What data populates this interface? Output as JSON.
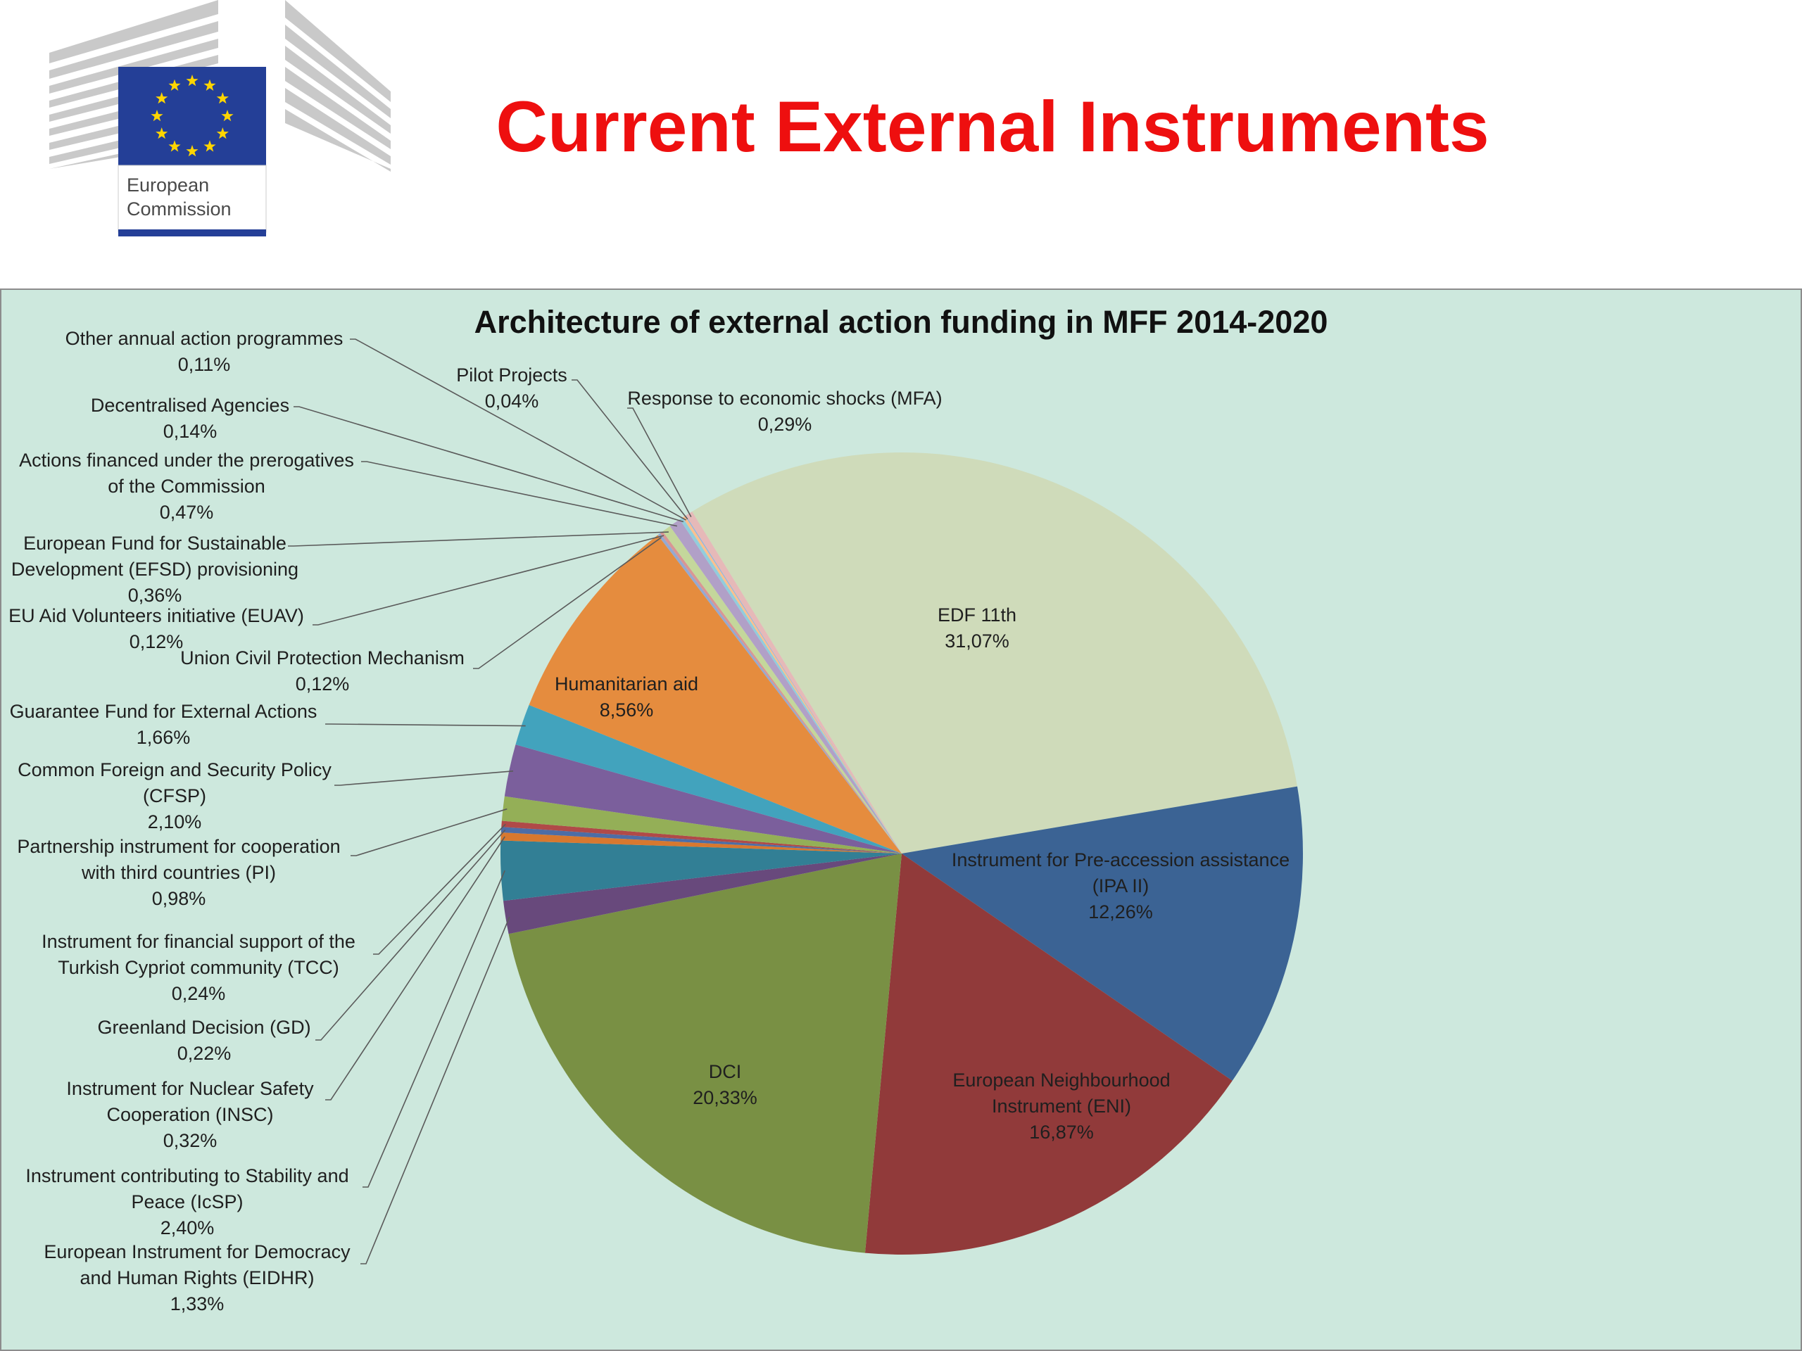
{
  "header": {
    "title": "Current External Instruments",
    "logo_text_line1": "European",
    "logo_text_line2": "Commission"
  },
  "colors": {
    "title_red": "#ee0f0f",
    "panel_bg": "#cde8dd",
    "eu_blue": "#243f97",
    "eu_gold": "#ffd500"
  },
  "chart_data": {
    "type": "pie",
    "title": "Architecture of external action funding in MFF 2014-2020",
    "slices": [
      {
        "label": "EDF 11th",
        "value": 31.07,
        "pct": "31,07%",
        "color": "#cfdbba"
      },
      {
        "label": "Instrument for Pre-accession assistance (IPA II)",
        "value": 12.26,
        "pct": "12,26%",
        "color": "#3b6394"
      },
      {
        "label": "European Neighbourhood Instrument (ENI)",
        "value": 16.87,
        "pct": "16,87%",
        "color": "#913a3a"
      },
      {
        "label": "DCI",
        "value": 20.33,
        "pct": "20,33%",
        "color": "#799044"
      },
      {
        "label": "European Instrument for Democracy and Human Rights (EIDHR)",
        "value": 1.33,
        "pct": "1,33%",
        "color": "#68497c"
      },
      {
        "label": "Instrument contributing to Stability and Peace (IcSP)",
        "value": 2.4,
        "pct": "2,40%",
        "color": "#327f95"
      },
      {
        "label": "Instrument for Nuclear Safety Cooperation (INSC)",
        "value": 0.32,
        "pct": "0,32%",
        "color": "#d8782f"
      },
      {
        "label": "Greenland Decision (GD)",
        "value": 0.22,
        "pct": "0,22%",
        "color": "#4d6da6"
      },
      {
        "label": "Instrument for financial support of the Turkish Cypriot community (TCC)",
        "value": 0.24,
        "pct": "0,24%",
        "color": "#b04a48"
      },
      {
        "label": "Partnership instrument for cooperation with third countries (PI)",
        "value": 0.98,
        "pct": "0,98%",
        "color": "#94af57"
      },
      {
        "label": "Common Foreign and Security Policy (CFSP)",
        "value": 2.1,
        "pct": "2,10%",
        "color": "#7b5f9c"
      },
      {
        "label": "Guarantee Fund for External Actions",
        "value": 1.66,
        "pct": "1,66%",
        "color": "#42a3bd"
      },
      {
        "label": "Humanitarian aid",
        "value": 8.56,
        "pct": "8,56%",
        "color": "#e58c3e"
      },
      {
        "label": "Union Civil Protection Mechanism",
        "value": 0.12,
        "pct": "0,12%",
        "color": "#95a9d1"
      },
      {
        "label": "EU Aid Volunteers initiative (EUAV)",
        "value": 0.12,
        "pct": "0,12%",
        "color": "#d99694"
      },
      {
        "label": "European Fund for Sustainable Development (EFSD)  provisioning",
        "value": 0.36,
        "pct": "0,36%",
        "color": "#c4d79b"
      },
      {
        "label": "Actions financed under the prerogatives of the Commission",
        "value": 0.47,
        "pct": "0,47%",
        "color": "#b1a0c7"
      },
      {
        "label": "Decentralised Agencies",
        "value": 0.14,
        "pct": "0,14%",
        "color": "#92cddc"
      },
      {
        "label": "Other annual action programmes",
        "value": 0.11,
        "pct": "0,11%",
        "color": "#fac08f"
      },
      {
        "label": "Pilot Projects",
        "value": 0.04,
        "pct": "0,04%",
        "color": "#8db3e2"
      },
      {
        "label": "Response to economic shocks (MFA)",
        "value": 0.29,
        "pct": "0,29%",
        "color": "#e6b9b8"
      }
    ],
    "labels": {
      "edf": {
        "lines": [
          "EDF 11th",
          "31,07%"
        ]
      },
      "ipa": {
        "lines": [
          "Instrument for Pre-accession assistance",
          "(IPA II)",
          "12,26%"
        ]
      },
      "eni": {
        "lines": [
          "European Neighbourhood",
          "Instrument (ENI)",
          "16,87%"
        ]
      },
      "dci": {
        "lines": [
          "DCI",
          "20,33%"
        ]
      },
      "hum": {
        "lines": [
          "Humanitarian aid",
          "8,56%"
        ]
      },
      "other": {
        "lines": [
          "Other annual action programmes",
          "0,11%"
        ]
      },
      "pilot": {
        "lines": [
          "Pilot Projects",
          "0,04%"
        ]
      },
      "mfa": {
        "lines": [
          "Response to economic shocks (MFA)",
          "0,29%"
        ]
      },
      "decen": {
        "lines": [
          "Decentralised Agencies",
          "0,14%"
        ]
      },
      "prerog": {
        "lines": [
          "Actions financed under the prerogatives",
          "of the Commission",
          "0,47%"
        ]
      },
      "efsd": {
        "lines": [
          "European Fund for Sustainable",
          "Development (EFSD)  provisioning",
          "0,36%"
        ]
      },
      "euav": {
        "lines": [
          "EU Aid Volunteers initiative (EUAV)",
          "0,12%"
        ]
      },
      "ucpm": {
        "lines": [
          "Union Civil Protection Mechanism",
          "0,12%"
        ]
      },
      "gfea": {
        "lines": [
          "Guarantee Fund for External Actions",
          "1,66%"
        ]
      },
      "cfsp": {
        "lines": [
          "Common Foreign and Security Policy",
          "(CFSP)",
          "2,10%"
        ]
      },
      "pi": {
        "lines": [
          "Partnership instrument for cooperation",
          "with third countries (PI)",
          "0,98%"
        ]
      },
      "tcc": {
        "lines": [
          "Instrument for financial support of the",
          "Turkish Cypriot community (TCC)",
          "0,24%"
        ]
      },
      "gd": {
        "lines": [
          "Greenland Decision (GD)",
          "0,22%"
        ]
      },
      "insc": {
        "lines": [
          "Instrument for Nuclear Safety",
          "Cooperation (INSC)",
          "0,32%"
        ]
      },
      "icsp": {
        "lines": [
          "Instrument contributing to Stability and",
          "Peace (IcSP)",
          "2,40%"
        ]
      },
      "eidhr": {
        "lines": [
          "European Instrument for Democracy",
          "and Human Rights (EIDHR)",
          "1,33%"
        ]
      }
    },
    "legend": "none"
  }
}
